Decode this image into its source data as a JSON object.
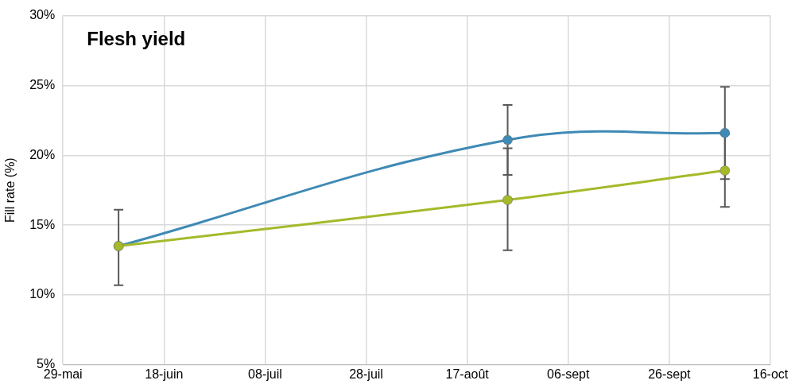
{
  "chart_data": {
    "type": "line",
    "title": "Flesh yield",
    "ylabel": "Fill rate (%)",
    "x": [
      "--06-09",
      "--08-25",
      "--10-07"
    ],
    "series": [
      {
        "color": "#3f8ab5",
        "values": [
          13.5,
          21.1,
          21.6
        ],
        "errors": [
          [
            10.7,
            16.1
          ],
          [
            18.6,
            23.6
          ],
          [
            18.3,
            24.9
          ]
        ]
      },
      {
        "color": "#a5b92a",
        "values": [
          13.5,
          16.8,
          18.9
        ],
        "errors": [
          [
            10.7,
            16.1
          ],
          [
            13.2,
            20.5
          ],
          [
            16.3,
            21.5
          ]
        ]
      }
    ],
    "xlim": [
      "--05-29",
      "--10-16"
    ],
    "xticks": [
      {
        "value": "--05-29",
        "label": "29-mai"
      },
      {
        "value": "--06-18",
        "label": "18-juin"
      },
      {
        "value": "--07-08",
        "label": "08-juil"
      },
      {
        "value": "--07-28",
        "label": "28-juil"
      },
      {
        "value": "--08-17",
        "label": "17-août"
      },
      {
        "value": "--09-06",
        "label": "06-sept"
      },
      {
        "value": "--09-26",
        "label": "26-sept"
      },
      {
        "value": "--10-16",
        "label": "16-oct"
      }
    ],
    "ylim": [
      5,
      30
    ],
    "yticks": [
      {
        "value": 5,
        "label": "5%"
      },
      {
        "value": 10,
        "label": "10%"
      },
      {
        "value": 15,
        "label": "15%"
      },
      {
        "value": 20,
        "label": "20%"
      },
      {
        "value": 25,
        "label": "25%"
      },
      {
        "value": 30,
        "label": "30%"
      }
    ],
    "grid": true,
    "legend": false,
    "marker": "circle",
    "line_style": "solid"
  }
}
